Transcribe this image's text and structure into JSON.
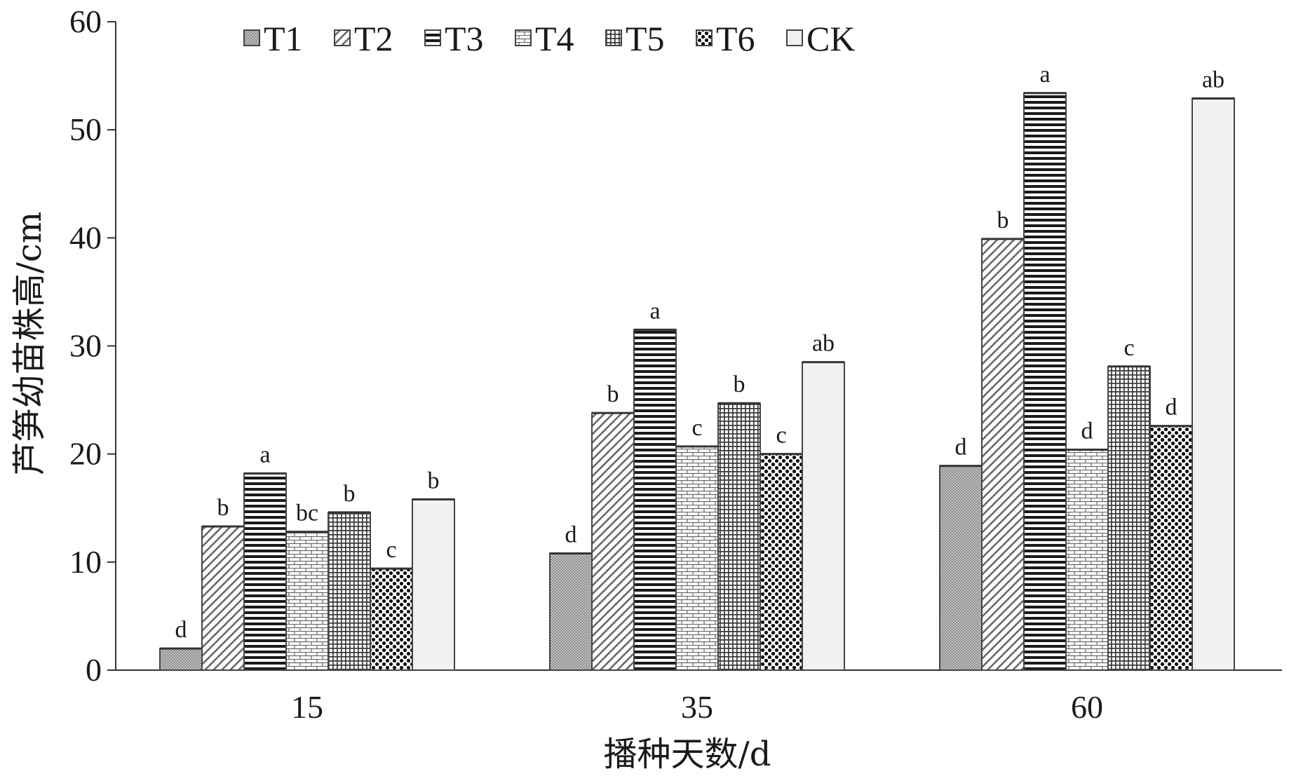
{
  "chart_data": {
    "type": "bar",
    "xlabel": "播种天数/d",
    "ylabel": "芦笋幼苗株高/cm",
    "ylim": [
      0,
      60
    ],
    "yticks": [
      0,
      10,
      20,
      30,
      40,
      50,
      60
    ],
    "categories": [
      "15",
      "35",
      "60"
    ],
    "grid": false,
    "legend_position": "top",
    "series": [
      {
        "name": "T1",
        "pattern": "fine-crosshatch",
        "values": [
          2.0,
          10.8,
          18.9
        ],
        "letters": [
          "d",
          "d",
          "d"
        ]
      },
      {
        "name": "T2",
        "pattern": "diagonal-stripes",
        "values": [
          13.3,
          23.8,
          39.9
        ],
        "letters": [
          "b",
          "b",
          "b"
        ]
      },
      {
        "name": "T3",
        "pattern": "horizontal-stripes",
        "values": [
          18.2,
          31.5,
          53.4
        ],
        "letters": [
          "a",
          "a",
          "a"
        ]
      },
      {
        "name": "T4",
        "pattern": "brick",
        "values": [
          12.8,
          20.7,
          20.4
        ],
        "letters": [
          "bc",
          "c",
          "d"
        ]
      },
      {
        "name": "T5",
        "pattern": "grid",
        "values": [
          14.6,
          24.7,
          28.1
        ],
        "letters": [
          "b",
          "b",
          "c"
        ]
      },
      {
        "name": "T6",
        "pattern": "dots",
        "values": [
          9.4,
          20.0,
          22.6
        ],
        "letters": [
          "c",
          "c",
          "d"
        ]
      },
      {
        "name": "CK",
        "pattern": "plain-light",
        "values": [
          15.8,
          28.5,
          52.9
        ],
        "letters": [
          "b",
          "ab",
          "ab"
        ]
      }
    ]
  }
}
